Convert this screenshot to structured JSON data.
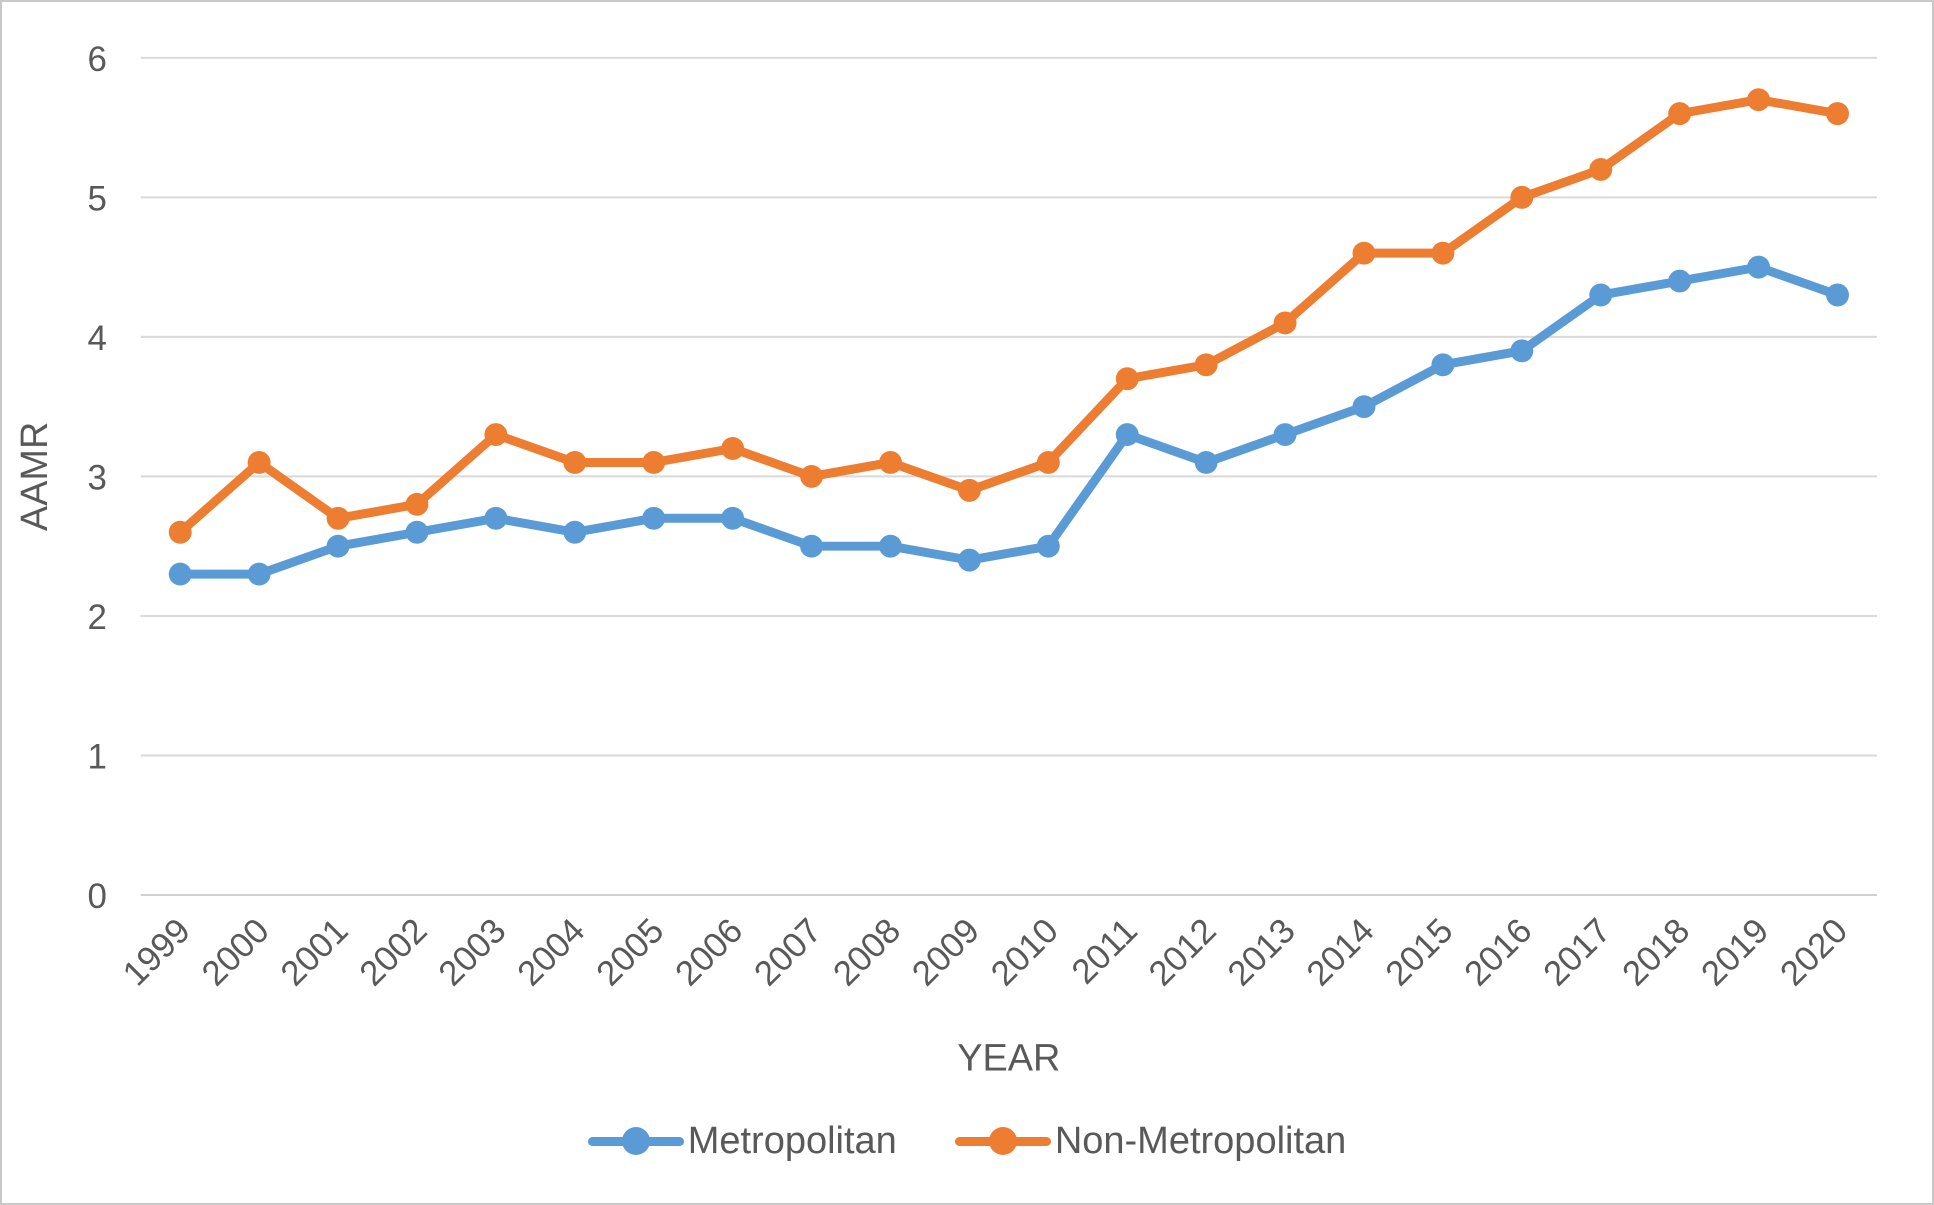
{
  "chart_data": {
    "type": "line",
    "title": "",
    "xlabel": "YEAR",
    "ylabel": "AAMR",
    "categories": [
      "1999",
      "2000",
      "2001",
      "2002",
      "2003",
      "2004",
      "2005",
      "2006",
      "2007",
      "2008",
      "2009",
      "2010",
      "2011",
      "2012",
      "2013",
      "2014",
      "2015",
      "2016",
      "2017",
      "2018",
      "2019",
      "2020"
    ],
    "series": [
      {
        "name": "Metropolitan",
        "color": "#5B9BD5",
        "values": [
          2.3,
          2.3,
          2.5,
          2.6,
          2.7,
          2.6,
          2.7,
          2.7,
          2.5,
          2.5,
          2.4,
          2.5,
          3.3,
          3.1,
          3.3,
          3.5,
          3.8,
          3.9,
          4.3,
          4.4,
          4.5,
          4.3
        ]
      },
      {
        "name": "Non-Metropolitan",
        "color": "#ED7D31",
        "values": [
          2.6,
          3.1,
          2.7,
          2.8,
          3.3,
          3.1,
          3.1,
          3.2,
          3.0,
          3.1,
          2.9,
          3.1,
          3.7,
          3.8,
          4.1,
          4.6,
          4.6,
          5.0,
          5.2,
          5.6,
          5.7,
          5.6
        ]
      }
    ],
    "ylim": [
      0,
      6
    ],
    "ytick_labels": [
      "0",
      "1",
      "2",
      "3",
      "4",
      "5",
      "6"
    ],
    "grid": true,
    "legend_position": "bottom"
  },
  "colors": {
    "grid": "#D9D9D9",
    "axis_line": "#D0D0D0",
    "axis_text": "#595959",
    "canvas_border": "#C9C9C9",
    "background": "#FFFFFF"
  }
}
